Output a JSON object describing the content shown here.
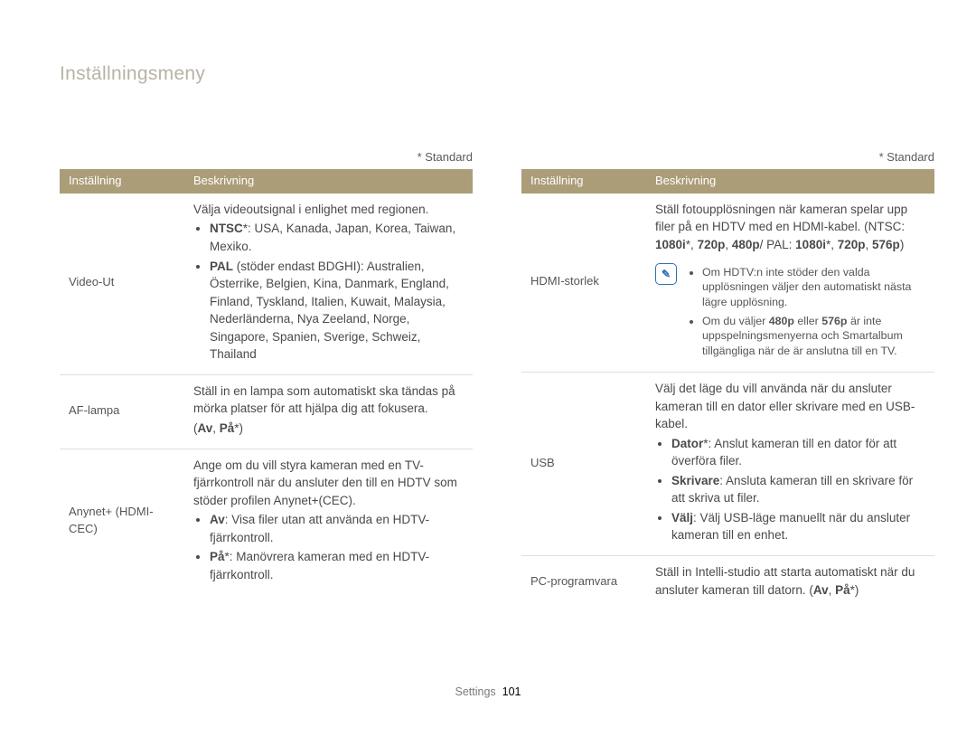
{
  "title": "Inställningsmeny",
  "standardLabel": "* Standard",
  "header": {
    "colA": "Inställning",
    "colB": "Beskrivning"
  },
  "footer": {
    "section": "Settings",
    "page": "101"
  },
  "noteIconGlyph": "✎",
  "left": [
    {
      "label": "Video-Ut",
      "lead": "Välja videoutsignal i enlighet med regionen.",
      "bullets": [
        {
          "boldLead": "NTSC",
          "afterBold": "*: USA, Kanada, Japan, Korea, Taiwan, Mexiko."
        },
        {
          "boldLead": "PAL",
          "afterBold": " (stöder endast BDGHI): Australien, Österrike, Belgien, Kina, Danmark, England, Finland, Tyskland, Italien, Kuwait, Malaysia, Nederländerna, Nya Zeeland, Norge, Singapore, Spanien, Sverige, Schweiz, Thailand"
        }
      ]
    },
    {
      "label": "AF-lampa",
      "lead": "Ställ in en lampa som automatiskt ska tändas på mörka platser för att hjälpa dig att fokusera.",
      "optionsHtml": "(<b>Av</b>, <b>På</b>*)"
    },
    {
      "label": "Anynet+ (HDMI-CEC)",
      "lead": "Ange om du vill styra kameran med en TV-fjärrkontroll när du ansluter den till en HDTV som stöder profilen Anynet+(CEC).",
      "bullets": [
        {
          "boldLead": "Av",
          "afterBold": ": Visa filer utan att använda en HDTV-fjärrkontroll."
        },
        {
          "boldLead": "På",
          "afterBold": "*: Manövrera kameran med en HDTV-fjärrkontroll."
        }
      ]
    }
  ],
  "right": [
    {
      "label": "HDMI-storlek",
      "leadHtml": "Ställ fotoupplösningen när kameran spelar upp filer på en HDTV med en HDMI-kabel. (NTSC: <b>1080i</b>*, <b>720p</b>, <b>480p</b>/ PAL: <b>1080i</b>*, <b>720p</b>, <b>576p</b>)",
      "notes": [
        "Om HDTV:n inte stöder den valda upplösningen väljer den automatiskt nästa lägre upplösning.",
        "Om du väljer <b>480p</b> eller <b>576p</b> är inte uppspelningsmenyerna och Smartalbum tillgängliga när de är anslutna till en TV."
      ]
    },
    {
      "label": "USB",
      "lead": "Välj det läge du vill använda när du ansluter kameran till en dator eller skrivare med en USB-kabel.",
      "bullets": [
        {
          "boldLead": "Dator",
          "afterBold": "*: Anslut kameran till en dator för att överföra filer."
        },
        {
          "boldLead": "Skrivare",
          "afterBold": ": Ansluta kameran till en skrivare för att skriva ut filer."
        },
        {
          "boldLead": "Välj",
          "afterBold": ": Välj USB-läge manuellt när du ansluter kameran till en enhet."
        }
      ]
    },
    {
      "label": "PC-programvara",
      "leadHtml": "Ställ in Intelli-studio att starta automatiskt när du ansluter kameran till datorn. (<b>Av</b>, <b>På</b>*)"
    }
  ]
}
